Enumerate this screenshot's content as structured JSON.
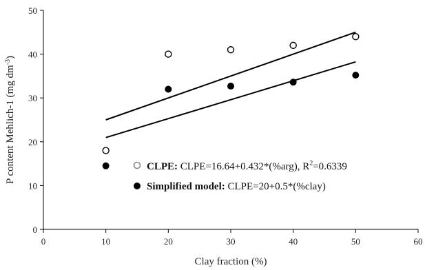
{
  "chart_data": {
    "type": "scatter",
    "xlabel": "Clay fraction (%)",
    "ylabel_main": "P content Mehlich-1 (mg dm",
    "ylabel_sup": "-3",
    "ylabel_close": ")",
    "xlim": [
      0,
      60
    ],
    "ylim": [
      0,
      50
    ],
    "xticks": [
      0,
      10,
      20,
      30,
      40,
      50,
      60
    ],
    "yticks": [
      0,
      10,
      20,
      30,
      40,
      50
    ],
    "grid": false,
    "legend_position": "bottom-center",
    "series": [
      {
        "name": "CLPE",
        "marker": "open-circle",
        "color": "#000000",
        "x": [
          10,
          20,
          30,
          40,
          50
        ],
        "y": [
          18,
          40,
          41,
          42,
          44
        ],
        "trendline": {
          "intercept": 16.64,
          "slope": 0.432
        }
      },
      {
        "name": "Simplified model",
        "marker": "filled-circle",
        "color": "#000000",
        "x": [
          10,
          20,
          30,
          40,
          50
        ],
        "y": [
          14.5,
          32,
          32.7,
          33.6,
          35.2
        ],
        "trendline": {
          "intercept": 20,
          "slope": 0.5
        }
      }
    ],
    "legend": [
      {
        "bold": "CLPE:",
        "text": " CLPE=16.64+0.432*(%arg),  R",
        "sup": "2",
        "tail": "=0.6339"
      },
      {
        "bold": "Simplified model:",
        "text": " CLPE=20+0.5*(%clay)"
      }
    ]
  }
}
